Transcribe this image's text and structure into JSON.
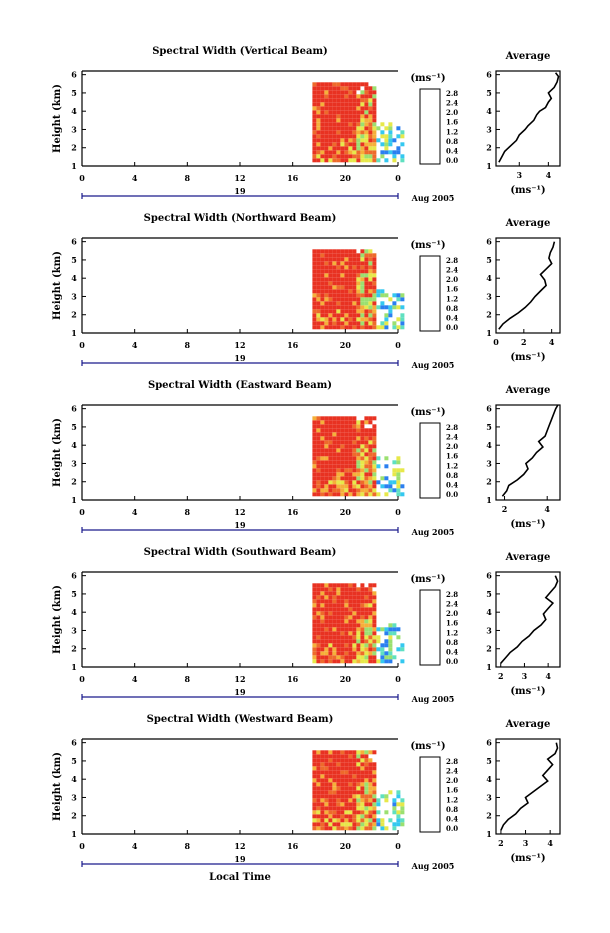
{
  "figure": {
    "panel_titles": [
      "Spectral Width (Vertical Beam)",
      "Spectral Width (Northward Beam)",
      "Spectral Width (Eastward Beam)",
      "Spectral Width (Southward Beam)",
      "Spectral Width (Westward Beam)"
    ],
    "ylabel": "Height (km)",
    "bottom_xlabel": "Local Time",
    "x_ticks": [
      "0",
      "4",
      "8",
      "12",
      "16",
      "20",
      "0"
    ],
    "y_ticks": [
      "1",
      "2",
      "3",
      "4",
      "5",
      "6"
    ],
    "day_label": "19",
    "date_label": "Aug 2005",
    "colorbar_unit": "(ms⁻¹)",
    "colorbar_ticks": [
      "0.0",
      "0.4",
      "0.8",
      "1.2",
      "1.6",
      "2.0",
      "2.4",
      "2.8"
    ],
    "avg_title": "Average",
    "avg_xlabel": "(ms⁻¹)",
    "avg_x_ticks": [
      [
        "3",
        "4"
      ],
      [
        "0",
        "2",
        "4"
      ],
      [
        "2",
        "4"
      ],
      [
        "2",
        "3",
        "4"
      ],
      [
        "2",
        "3",
        "4"
      ]
    ]
  },
  "colors": {
    "saturated": "#e83222",
    "scale": [
      "#2a2f6b",
      "#1438c8",
      "#2b7ff0",
      "#34c8f0",
      "#5fe0c0",
      "#9be070",
      "#e7e84a",
      "#f5b03a",
      "#ee6a2b",
      "#e83222"
    ]
  },
  "chart_data": [
    {
      "type": "heatmap",
      "title": "Spectral Width (Vertical Beam)",
      "xlabel": "",
      "ylabel": "Height (km)",
      "xlim": [
        0,
        24
      ],
      "ylim": [
        1,
        6.2
      ],
      "colorbar_range": [
        0,
        2.8
      ],
      "data_extent": {
        "time": [
          17.5,
          27.5
        ],
        "height": [
          1.2,
          5.5
        ]
      },
      "notes": "Mostly saturated (>2.8) between ~17.5 and ~21 LT; mixed values 1.2-2.8 after 21 LT; sparse low values (<1.2) near 1.5-2 km at ~22-23 LT."
    },
    {
      "type": "heatmap",
      "title": "Spectral Width (Northward Beam)",
      "xlabel": "",
      "ylabel": "Height (km)",
      "xlim": [
        0,
        24
      ],
      "ylim": [
        1,
        6.2
      ],
      "colorbar_range": [
        0,
        2.8
      ],
      "data_extent": {
        "time": [
          17.5,
          24
        ],
        "height": [
          1.2,
          5.5
        ]
      }
    },
    {
      "type": "heatmap",
      "title": "Spectral Width (Eastward Beam)",
      "xlabel": "",
      "ylabel": "Height (km)",
      "xlim": [
        0,
        24
      ],
      "ylim": [
        1,
        6.2
      ],
      "colorbar_range": [
        0,
        2.8
      ],
      "data_extent": {
        "time": [
          17.5,
          24
        ],
        "height": [
          1.2,
          5.5
        ]
      }
    },
    {
      "type": "heatmap",
      "title": "Spectral Width (Southward Beam)",
      "xlabel": "",
      "ylabel": "Height (km)",
      "xlim": [
        0,
        24
      ],
      "ylim": [
        1,
        6.2
      ],
      "colorbar_range": [
        0,
        2.8
      ],
      "data_extent": {
        "time": [
          17.5,
          24
        ],
        "height": [
          1.2,
          5.5
        ]
      }
    },
    {
      "type": "heatmap",
      "title": "Spectral Width (Westward Beam)",
      "xlabel": "Local Time",
      "ylabel": "Height (km)",
      "xlim": [
        0,
        24
      ],
      "ylim": [
        1,
        6.2
      ],
      "colorbar_range": [
        0,
        2.8
      ],
      "data_extent": {
        "time": [
          17.5,
          24
        ],
        "height": [
          1.2,
          5.5
        ]
      }
    },
    {
      "type": "line",
      "title": "Average",
      "xlabel": "(ms⁻¹)",
      "xlim": [
        2.2,
        4.4
      ],
      "ylim": [
        1,
        6.2
      ],
      "x": [
        2.3,
        2.4,
        2.5,
        2.7,
        2.9,
        3.0,
        3.2,
        3.3,
        3.5,
        3.6,
        3.7,
        3.9,
        4.0,
        4.1,
        4.0,
        4.2,
        4.3,
        4.35,
        4.25
      ],
      "y": [
        1.2,
        1.5,
        1.8,
        2.1,
        2.4,
        2.7,
        3.0,
        3.2,
        3.5,
        3.8,
        4.0,
        4.2,
        4.5,
        4.7,
        5.0,
        5.3,
        5.6,
        5.9,
        6.1
      ]
    },
    {
      "type": "line",
      "title": "Average",
      "xlabel": "(ms⁻¹)",
      "xlim": [
        0,
        4.6
      ],
      "ylim": [
        1,
        6.2
      ],
      "x": [
        0.2,
        0.5,
        1.0,
        1.6,
        2.1,
        2.5,
        2.8,
        3.2,
        3.6,
        3.5,
        3.2,
        3.6,
        4.0,
        3.8,
        3.9,
        4.1,
        4.2
      ],
      "y": [
        1.2,
        1.5,
        1.8,
        2.1,
        2.4,
        2.7,
        3.0,
        3.3,
        3.6,
        3.9,
        4.2,
        4.5,
        4.8,
        5.1,
        5.4,
        5.7,
        6.0
      ]
    },
    {
      "type": "line",
      "title": "Average",
      "xlabel": "(ms⁻¹)",
      "xlim": [
        1.6,
        4.6
      ],
      "ylim": [
        1,
        6.2
      ],
      "x": [
        1.9,
        2.1,
        2.2,
        2.6,
        2.9,
        3.1,
        3.0,
        3.3,
        3.5,
        3.8,
        3.6,
        3.9,
        4.0,
        4.1,
        4.2,
        4.3,
        4.4,
        4.5
      ],
      "y": [
        1.2,
        1.5,
        1.8,
        2.1,
        2.4,
        2.7,
        3.0,
        3.3,
        3.6,
        3.9,
        4.2,
        4.5,
        4.8,
        5.1,
        5.4,
        5.7,
        6.0,
        6.2
      ]
    },
    {
      "type": "line",
      "title": "Average",
      "xlabel": "(ms⁻¹)",
      "xlim": [
        1.8,
        4.5
      ],
      "ylim": [
        1,
        6.2
      ],
      "x": [
        2.0,
        2.2,
        2.4,
        2.7,
        2.9,
        3.2,
        3.4,
        3.7,
        3.9,
        3.8,
        4.0,
        4.2,
        3.9,
        4.1,
        4.3,
        4.4,
        4.3
      ],
      "y": [
        1.2,
        1.5,
        1.8,
        2.1,
        2.4,
        2.7,
        3.0,
        3.3,
        3.6,
        3.9,
        4.2,
        4.5,
        4.8,
        5.1,
        5.4,
        5.7,
        6.0
      ]
    },
    {
      "type": "line",
      "title": "Average",
      "xlabel": "(ms⁻¹)",
      "xlim": [
        1.8,
        4.4
      ],
      "ylim": [
        1,
        6.2
      ],
      "x": [
        2.0,
        2.1,
        2.3,
        2.6,
        2.8,
        3.1,
        3.0,
        3.3,
        3.6,
        3.9,
        3.7,
        3.9,
        4.1,
        3.9,
        4.2,
        4.3,
        4.25
      ],
      "y": [
        1.2,
        1.5,
        1.8,
        2.1,
        2.4,
        2.7,
        3.0,
        3.3,
        3.6,
        3.9,
        4.2,
        4.5,
        4.8,
        5.1,
        5.4,
        5.7,
        6.0
      ]
    }
  ]
}
